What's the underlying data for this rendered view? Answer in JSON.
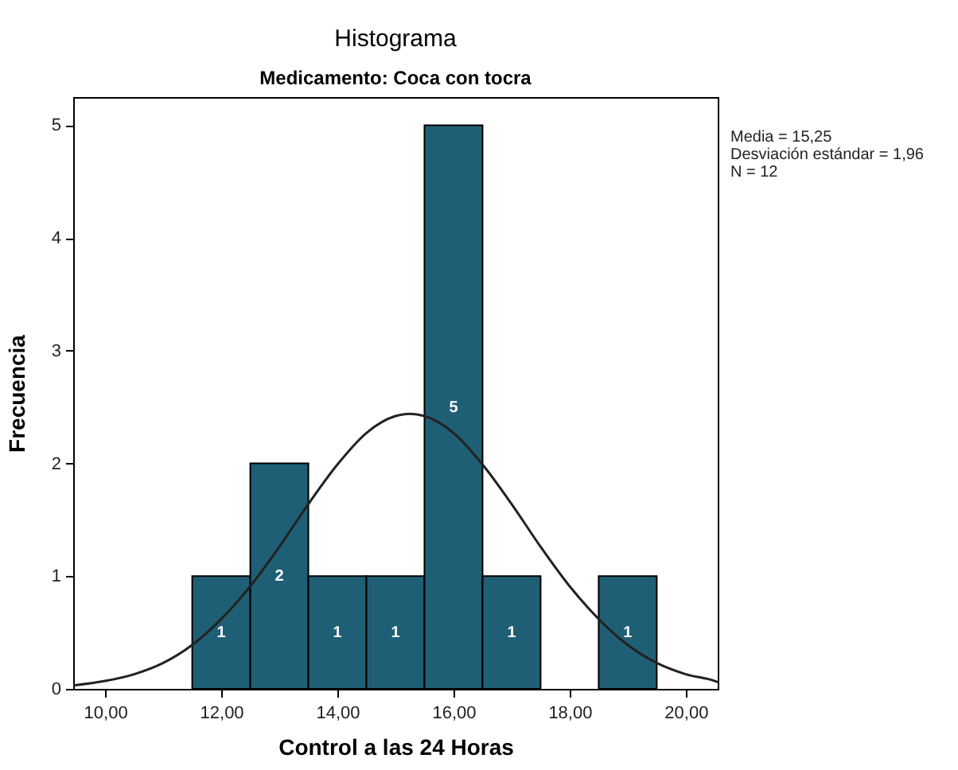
{
  "chart_data": {
    "type": "histogram",
    "title": "Histograma",
    "subtitle": "Medicamento: Coca con tocra",
    "xlabel": "Control a las 24 Horas",
    "ylabel": "Frecuencia",
    "bins": [
      11.5,
      12.5,
      13.5,
      14.5,
      15.5,
      16.5,
      17.5,
      18.5,
      19.5
    ],
    "values": [
      1,
      2,
      1,
      1,
      5,
      1,
      0,
      1
    ],
    "value_labels": [
      "1",
      "2",
      "1",
      "1",
      "5",
      "1",
      null,
      "1"
    ],
    "color": "#1f5f75",
    "series": [
      {
        "type": "line",
        "color": "#222222",
        "x": [
          9.45,
          10,
          10.5,
          11,
          11.5,
          12,
          12.5,
          13,
          13.5,
          14,
          14.5,
          15,
          15.25,
          15.5,
          16,
          16.5,
          17,
          17.5,
          18,
          18.5,
          19,
          19.5,
          20,
          20.5,
          20.55
        ],
        "values": [
          0.03,
          0.07,
          0.13,
          0.23,
          0.39,
          0.62,
          0.91,
          1.26,
          1.64,
          1.99,
          2.27,
          2.42,
          2.44,
          2.42,
          2.27,
          1.99,
          1.64,
          1.26,
          0.91,
          0.62,
          0.39,
          0.23,
          0.13,
          0.07,
          0.06
        ]
      }
    ],
    "xlim": [
      9.45,
      20.55
    ],
    "xticks": [
      {
        "value": 10,
        "label": "10,00"
      },
      {
        "value": 12,
        "label": "12,00"
      },
      {
        "value": 14,
        "label": "14,00"
      },
      {
        "value": 16,
        "label": "16,00"
      },
      {
        "value": 18,
        "label": "18,00"
      },
      {
        "value": 20,
        "label": "20,00"
      }
    ],
    "ylim": [
      0,
      5.25
    ],
    "yticks": [
      0,
      1,
      2,
      3,
      4,
      5
    ],
    "grid": false,
    "annotations": [
      "Media = 15,25",
      "Desviación estándar = 1,96",
      "N = 12"
    ]
  }
}
